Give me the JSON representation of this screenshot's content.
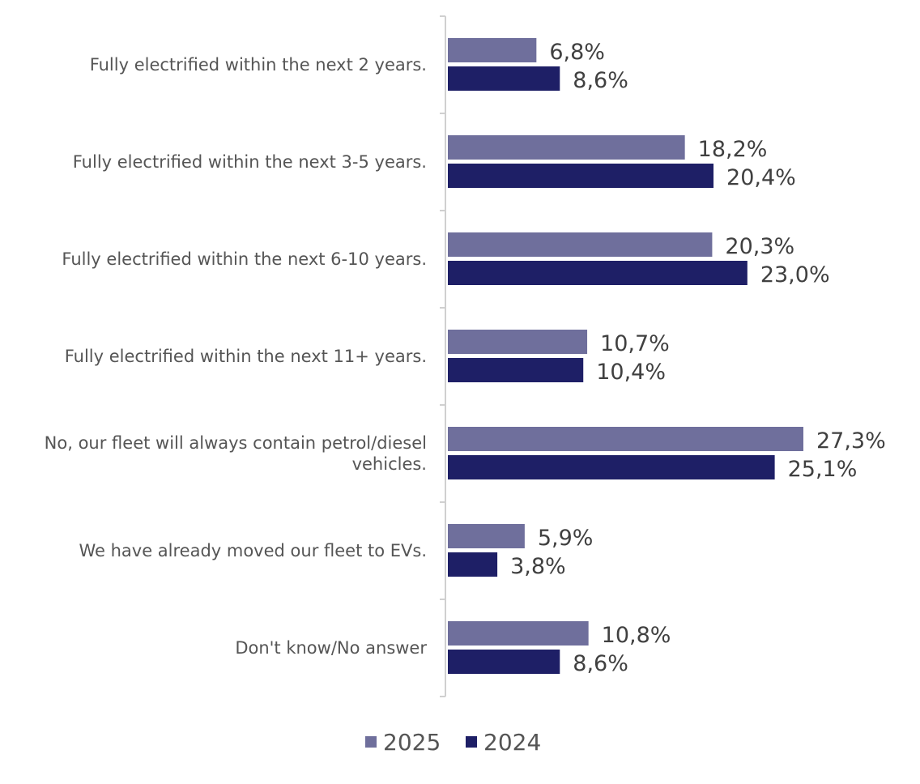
{
  "chart_data": {
    "type": "bar",
    "orientation": "horizontal",
    "title": "",
    "xlabel": "",
    "ylabel": "",
    "xlim": [
      0,
      30
    ],
    "grid": false,
    "legend_position": "bottom",
    "categories": [
      [
        "Fully electrified within the next 2 years."
      ],
      [
        "Fully electrified within the next 3-5 years."
      ],
      [
        "Fully electrified within the next 6-10 years."
      ],
      [
        "Fully electrified within the next 11+ years."
      ],
      [
        "No, our fleet will always contain petrol/diesel",
        "vehicles."
      ],
      [
        "We have already moved our fleet to EVs."
      ],
      [
        "Don't know/No answer"
      ]
    ],
    "series": [
      {
        "name": "2025",
        "color": "#6f6f9c",
        "values": [
          6.8,
          18.2,
          20.3,
          10.7,
          27.3,
          5.9,
          10.8
        ],
        "labels": [
          "6,8%",
          "18,2%",
          "20,3%",
          "10,7%",
          "27,3%",
          "5,9%",
          "10,8%"
        ]
      },
      {
        "name": "2024",
        "color": "#1e1f66",
        "values": [
          8.6,
          20.4,
          23.0,
          10.4,
          25.1,
          3.8,
          8.6
        ],
        "labels": [
          "8,6%",
          "20,4%",
          "23,0%",
          "10,4%",
          "25,1%",
          "3,8%",
          "8,6%"
        ]
      }
    ]
  }
}
